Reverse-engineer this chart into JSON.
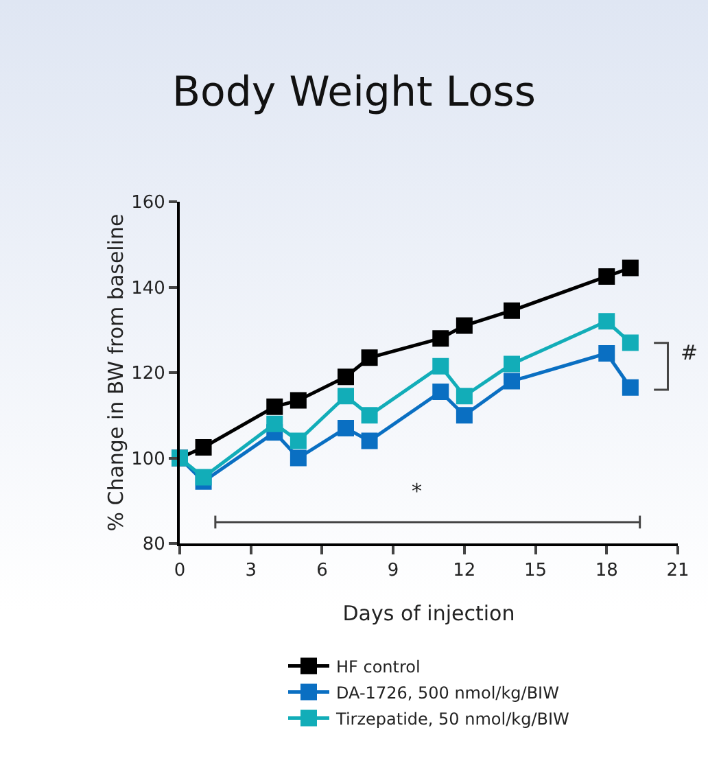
{
  "chart_data": {
    "type": "line",
    "title": "Body Weight Loss",
    "xlabel": "Days of injection",
    "ylabel": "% Change in BW from baseline",
    "x": [
      0,
      1,
      4,
      5,
      7,
      8,
      11,
      12,
      14,
      18,
      19
    ],
    "series": [
      {
        "name": "HF control",
        "color": "#000000",
        "values": [
          100,
          102.5,
          112,
          113.5,
          119,
          123.5,
          128,
          131,
          134.5,
          142.5,
          144.5
        ]
      },
      {
        "name": "DA-1726, 500 nmol/kg/BIW",
        "color": "#0a6fc2",
        "values": [
          100,
          94.5,
          106,
          100,
          107,
          104,
          115.5,
          110,
          118,
          124.5,
          116.5
        ]
      },
      {
        "name": "Tirzepatide, 50 nmol/kg/BIW",
        "color": "#12adb8",
        "values": [
          100,
          95.5,
          108,
          104,
          114.5,
          110,
          121.5,
          114.5,
          122,
          132,
          127
        ]
      },
      {
        "type": "line",
        "color": "#444444",
        "x": [
          1.5,
          19.4
        ],
        "values": [
          85,
          85
        ],
        "errors": [
          1.5,
          1.5
        ],
        "marker": "none"
      }
    ],
    "xlim": [
      0,
      21
    ],
    "xticks": [
      0,
      3,
      6,
      9,
      12,
      15,
      18,
      21
    ],
    "ylim": [
      80,
      160
    ],
    "yticks": [
      80,
      100,
      120,
      140,
      160
    ],
    "annotations": [
      "*",
      "#"
    ],
    "grid": false,
    "legend": "bottom",
    "marker": "square",
    "line_style": "solid"
  }
}
